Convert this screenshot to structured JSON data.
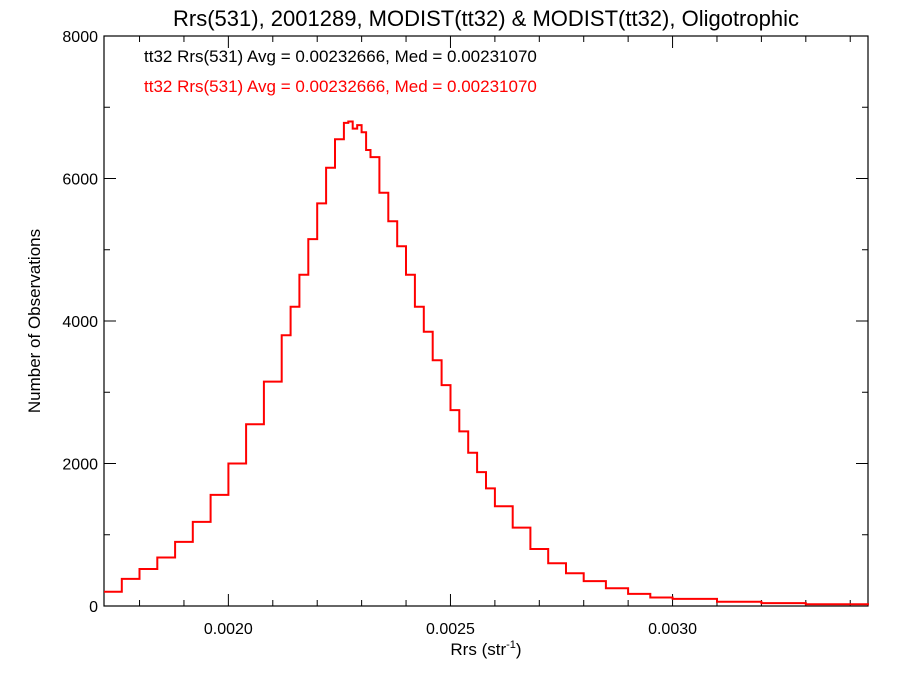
{
  "chart_data": {
    "type": "line",
    "step": true,
    "title": "Rrs(531), 2001289, MODIST(tt32) & MODIST(tt32), Oligotrophic",
    "xlabel": "Rrs (str",
    "xlabel_sup": "-1",
    "xlabel_close": ")",
    "ylabel": "Number of Observations",
    "xlim": [
      0.00172,
      0.00344
    ],
    "ylim": [
      0,
      8000
    ],
    "x_ticks": [
      0.002,
      0.0025,
      0.003
    ],
    "x_tick_labels": [
      "0.0020",
      "0.0025",
      "0.0030"
    ],
    "y_ticks": [
      0,
      2000,
      4000,
      6000,
      8000
    ],
    "y_tick_labels": [
      "0",
      "2000",
      "4000",
      "6000",
      "8000"
    ],
    "grid": false,
    "annotations": [
      {
        "text": "tt32 Rrs(531) Avg = 0.00232666, Med = 0.00231070",
        "color": "#000000"
      },
      {
        "text": "tt32 Rrs(531) Avg = 0.00232666, Med = 0.00231070",
        "color": "#ff0000"
      }
    ],
    "series": [
      {
        "color": "#ff0000",
        "x": [
          0.00172,
          0.00176,
          0.0018,
          0.00184,
          0.00188,
          0.00192,
          0.00196,
          0.002,
          0.00204,
          0.00208,
          0.00212,
          0.00214,
          0.00216,
          0.00218,
          0.0022,
          0.00222,
          0.00224,
          0.00226,
          0.00227,
          0.00228,
          0.00229,
          0.0023,
          0.00231,
          0.00232,
          0.00234,
          0.00236,
          0.00238,
          0.0024,
          0.00242,
          0.00244,
          0.00246,
          0.00248,
          0.0025,
          0.00252,
          0.00254,
          0.00256,
          0.00258,
          0.0026,
          0.00264,
          0.00268,
          0.00272,
          0.00276,
          0.0028,
          0.00285,
          0.0029,
          0.00295,
          0.003,
          0.0031,
          0.0032,
          0.0033,
          0.00344
        ],
        "values": [
          200,
          380,
          520,
          680,
          900,
          1180,
          1560,
          2000,
          2550,
          3150,
          3800,
          4200,
          4650,
          5150,
          5650,
          6150,
          6550,
          6780,
          6800,
          6700,
          6750,
          6650,
          6400,
          6300,
          5800,
          5400,
          5050,
          4650,
          4200,
          3850,
          3450,
          3100,
          2750,
          2450,
          2150,
          1880,
          1650,
          1400,
          1100,
          800,
          600,
          460,
          350,
          250,
          170,
          120,
          100,
          60,
          40,
          25,
          10
        ]
      }
    ]
  }
}
